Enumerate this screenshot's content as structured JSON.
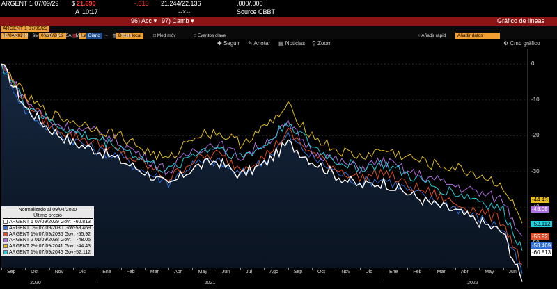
{
  "header": {
    "ticker": "ARGENT 1 07/09/29",
    "price_prefix": "$",
    "price": "​21.690",
    "change": "-.615",
    "bid_ask": "21.244/22.136",
    "size": ".000/.000",
    "time_label": "A",
    "time": "10:17",
    "dash": "--×--",
    "source": "Source CBBT"
  },
  "redbar": {
    "acc_label": "Acc",
    "camb_label": "Camb",
    "chart_title": "Gráfico de líneas"
  },
  "orangebar": {
    "security": "ARGENT 1 07/09/20",
    "start_date": "09/04/2020",
    "end_date": "09/28/2022",
    "field": "Last Px",
    "currency": "Divisa local",
    "avg": "Med móv",
    "events": "Eventos clave",
    "add_quick": "Añadir rápid",
    "add_data": "Añadir datos"
  },
  "timeframes": [
    "1D",
    "3D",
    "1M",
    "6M",
    "YTD",
    "1A",
    "5A",
    "Máx"
  ],
  "period": "Diario",
  "table_label": "Tabla",
  "toolbar": {
    "follow": "Seguir",
    "annotate": "Anotar",
    "news": "Noticias",
    "zoom": "Zoom",
    "chart_options": "Cmb gráfico"
  },
  "legend": {
    "title": "Normalizado al 09/04/2020",
    "subtitle": "Último precio",
    "rows": [
      {
        "name": "ARGENT 1 07/09/2029 Govt",
        "value": "-60.813",
        "color": "#ffffff"
      },
      {
        "name": "ARGENT 0½ 07/09/2030 Govt",
        "value": "-58.469",
        "color": "#2f6fd6"
      },
      {
        "name": "ARGENT 1⅛ 07/09/2035 Govt",
        "value": "-55.92",
        "color": "#e0502a"
      },
      {
        "name": "ARGENT 2 01/09/2038 Govt",
        "value": "-48.05",
        "color": "#b070e0"
      },
      {
        "name": "ARGENT 2½ 07/09/2041 Govt",
        "value": "-44.43",
        "color": "#e6c020"
      },
      {
        "name": "ARGENT 1⅛ 07/09/2046 Govt",
        "value": "-52.112",
        "color": "#22d0e0"
      }
    ]
  },
  "chart_data": {
    "type": "line",
    "title": "Normalizado al 09/04/2020",
    "ylim": [
      -57,
      2
    ],
    "yticks": [
      "0",
      "-10",
      "-20",
      "-30",
      "-40",
      "-50"
    ],
    "x_ticks": [
      "Sep",
      "Oct",
      "Nov",
      "Dic",
      "Ene",
      "Feb",
      "Mar",
      "Abr",
      "May",
      "Jun",
      "Jul",
      "Ago",
      "Sep",
      "Oct",
      "Nov",
      "Dic",
      "Ene",
      "Feb",
      "Mar",
      "Abr",
      "May",
      "Jun"
    ],
    "years": [
      "2020",
      "2021",
      "2022"
    ],
    "x_months": [
      0,
      1,
      2,
      3,
      4,
      5,
      6,
      7,
      8,
      9,
      10,
      11,
      12,
      13,
      14,
      15,
      16,
      17,
      18,
      19,
      20,
      21,
      21.8
    ],
    "series": [
      {
        "name": "ARGENT 1 07/09/2029 Govt",
        "color": "#ffffff",
        "values": [
          0,
          -12,
          -18,
          -22,
          -24,
          -27,
          -30,
          -34,
          -29,
          -27,
          -31,
          -28,
          -22,
          -27,
          -31,
          -34,
          -33,
          -36,
          -39,
          -41,
          -44,
          -47,
          -60.8
        ]
      },
      {
        "name": "ARGENT 0½ 07/09/2030 Govt",
        "color": "#2f6fd6",
        "values": [
          0,
          -13,
          -18,
          -21,
          -24,
          -26,
          -30,
          -33,
          -28,
          -27,
          -31,
          -27,
          -20,
          -26,
          -30,
          -33,
          -32,
          -35,
          -38,
          -40,
          -43,
          -46,
          -58.5
        ]
      },
      {
        "name": "ARGENT 1⅛ 07/09/2035 Govt",
        "color": "#e0502a",
        "values": [
          0,
          -10,
          -17,
          -20,
          -22,
          -25,
          -28,
          -32,
          -27,
          -25,
          -29,
          -26,
          -19,
          -25,
          -29,
          -32,
          -30,
          -34,
          -36,
          -39,
          -41,
          -44,
          -55.9
        ]
      },
      {
        "name": "ARGENT 2 01/09/2038 Govt",
        "color": "#b070e0",
        "values": [
          0,
          -10,
          -16,
          -18,
          -19,
          -22,
          -26,
          -30,
          -24,
          -22,
          -26,
          -22,
          -17,
          -24,
          -27,
          -29,
          -27,
          -30,
          -32,
          -34,
          -36,
          -38,
          -48.05
        ]
      },
      {
        "name": "ARGENT 2½ 07/09/2041 Govt",
        "color": "#e6c020",
        "values": [
          0,
          -9,
          -14,
          -16,
          -18,
          -20,
          -24,
          -27,
          -20,
          -19,
          -22,
          -18,
          -12,
          -20,
          -24,
          -26,
          -24,
          -26,
          -28,
          -29,
          -31,
          -34,
          -44.43
        ]
      },
      {
        "name": "ARGENT 1⅛ 07/09/2046 Govt",
        "color": "#22d0e0",
        "values": [
          0,
          -11,
          -16,
          -19,
          -21,
          -23,
          -27,
          -30,
          -25,
          -23,
          -26,
          -23,
          -16,
          -23,
          -27,
          -29,
          -28,
          -31,
          -34,
          -36,
          -38,
          -41,
          -52.11
        ]
      }
    ]
  }
}
